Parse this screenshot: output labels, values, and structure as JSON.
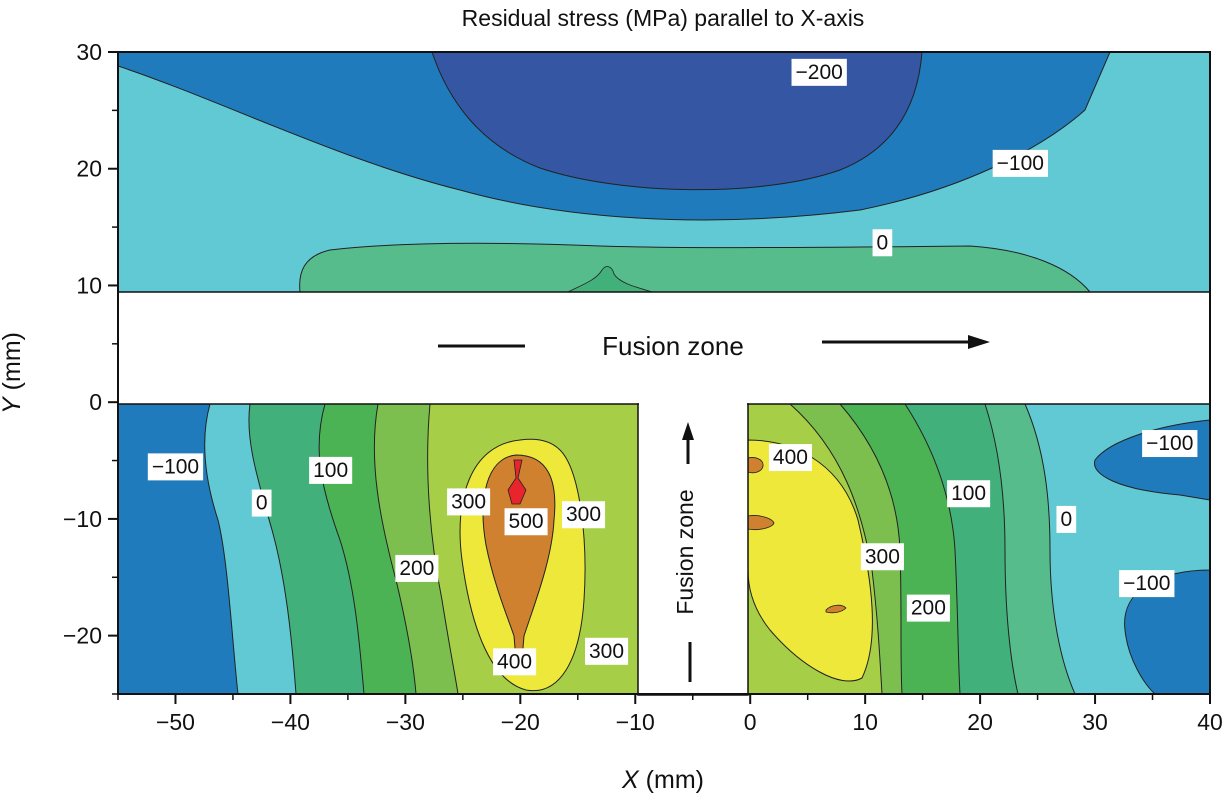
{
  "chart_data": {
    "type": "contour",
    "title": "Residual stress (MPa) parallel to X-axis",
    "xlabel_italic": "X",
    "xlabel_rest": " (mm)",
    "ylabel_italic": "Y",
    "ylabel_rest": " (mm)",
    "xlim": [
      -55,
      40
    ],
    "ylim": [
      -25,
      30
    ],
    "x_ticks": [
      -50,
      -40,
      -30,
      -20,
      -10,
      0,
      10,
      20,
      30,
      40
    ],
    "x_tick_labels": [
      "−50",
      "−40",
      "−30",
      "−20",
      "−10",
      "0",
      "10",
      "20",
      "30",
      "40"
    ],
    "y_ticks": [
      -20,
      -10,
      0,
      10,
      20,
      30
    ],
    "y_tick_labels": [
      "−20",
      "−10",
      "0",
      "10",
      "20",
      "30"
    ],
    "contour_levels": [
      -200,
      -100,
      0,
      100,
      200,
      300,
      400,
      500
    ],
    "level_colors": {
      "-200": "#3456a3",
      "-100": "#1f7bbb",
      "0": "#61c9d3",
      "50": "#57bc8c",
      "100": "#42b07a",
      "150": "#4cb354",
      "200": "#7cbf4f",
      "250": "#a6cf47",
      "300": "#eee83a",
      "400": "#d0812f",
      "500": "#e8252c"
    },
    "fusion_zones": [
      {
        "label": "Fusion zone",
        "x_range": [
          -55,
          40
        ],
        "y_range": [
          0,
          10
        ],
        "orientation": "horizontal",
        "arrow_direction": "+x"
      },
      {
        "label": "Fusion zone",
        "x_range": [
          -9.5,
          0
        ],
        "y_range": [
          -25,
          0
        ],
        "orientation": "vertical",
        "arrow_direction": "+y"
      }
    ],
    "contour_labels": [
      {
        "text": "−200",
        "x": 6,
        "y": 28.3
      },
      {
        "text": "−100",
        "x": 23.5,
        "y": 20.5
      },
      {
        "text": "0",
        "x": 11.5,
        "y": 13.7
      },
      {
        "text": "−100",
        "x": -50,
        "y": -5.5
      },
      {
        "text": "100",
        "x": -36.5,
        "y": -5.8
      },
      {
        "text": "0",
        "x": -42.5,
        "y": -8.6
      },
      {
        "text": "300",
        "x": -24.5,
        "y": -8.5
      },
      {
        "text": "500",
        "x": -19.5,
        "y": -10.2
      },
      {
        "text": "300",
        "x": -14.5,
        "y": -9.6
      },
      {
        "text": "200",
        "x": -29,
        "y": -14.2
      },
      {
        "text": "400",
        "x": -20.5,
        "y": -22.2
      },
      {
        "text": "300",
        "x": -12.5,
        "y": -21.3
      },
      {
        "text": "400",
        "x": 3.5,
        "y": -4.7
      },
      {
        "text": "100",
        "x": 19,
        "y": -7.8
      },
      {
        "text": "0",
        "x": 27.5,
        "y": -10
      },
      {
        "text": "300",
        "x": 11.5,
        "y": -13.2
      },
      {
        "text": "200",
        "x": 15.5,
        "y": -17.6
      },
      {
        "text": "−100",
        "x": 36.5,
        "y": -3.5
      },
      {
        "text": "−100",
        "x": 34.5,
        "y": -15.5
      }
    ]
  }
}
